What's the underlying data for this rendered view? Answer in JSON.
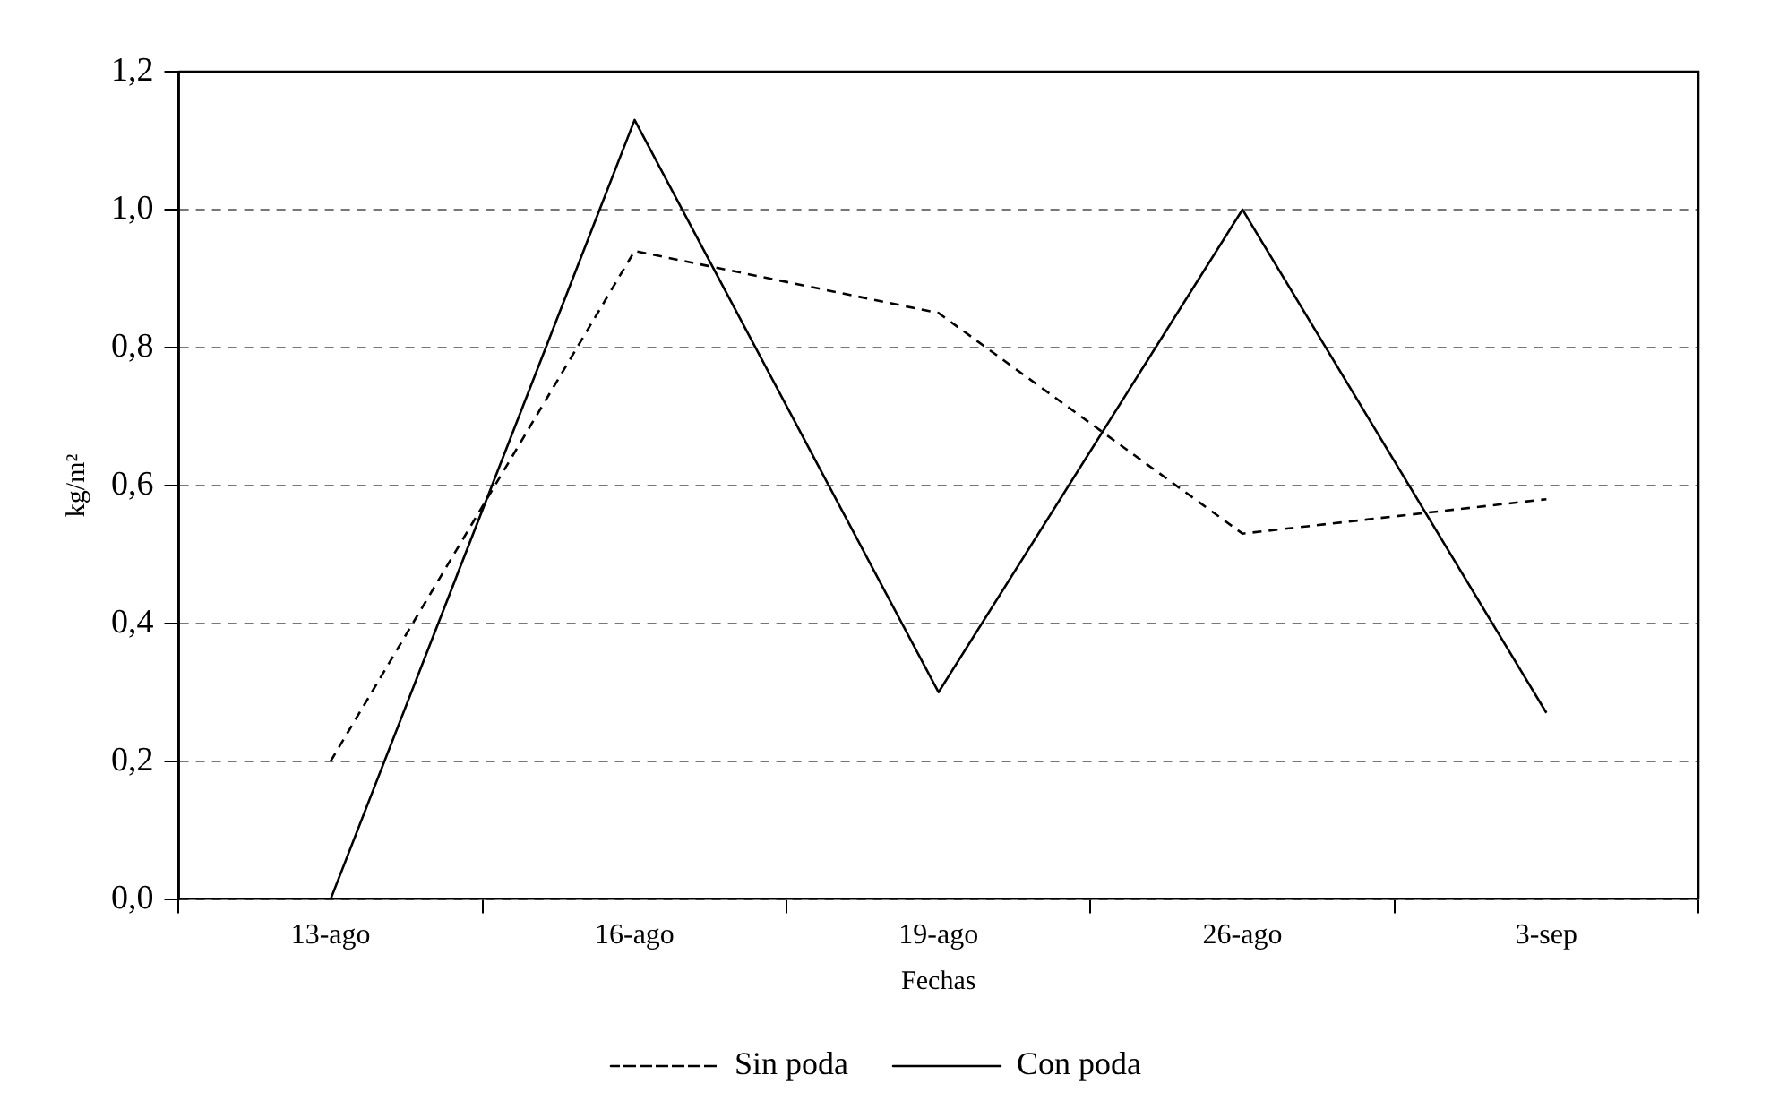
{
  "chart_data": {
    "type": "line",
    "xlabel": "Fechas",
    "ylabel": "kg/m²",
    "categories": [
      "13-ago",
      "16-ago",
      "19-ago",
      "26-ago",
      "3-sep"
    ],
    "series": [
      {
        "name": "Sin poda",
        "color": "#000000",
        "line_style": "dashed",
        "values": [
          0.2,
          0.94,
          0.85,
          0.53,
          0.58
        ]
      },
      {
        "name": "Con poda",
        "color": "#000000",
        "line_style": "solid",
        "values": [
          0.0,
          1.13,
          0.3,
          1.0,
          0.27
        ]
      }
    ],
    "ylim": [
      0,
      1.2
    ],
    "yticks": [
      {
        "value": 0,
        "label": "0,0"
      },
      {
        "value": 0.2,
        "label": "0,2"
      },
      {
        "value": 0.4,
        "label": "0,4"
      },
      {
        "value": 0.6,
        "label": "0,6"
      },
      {
        "value": 0.8,
        "label": "0,8"
      },
      {
        "value": 1,
        "label": "1,0"
      },
      {
        "value": 1.2,
        "label": "1,2"
      }
    ],
    "grid": "y",
    "legend": "bottom",
    "marker": "none"
  }
}
